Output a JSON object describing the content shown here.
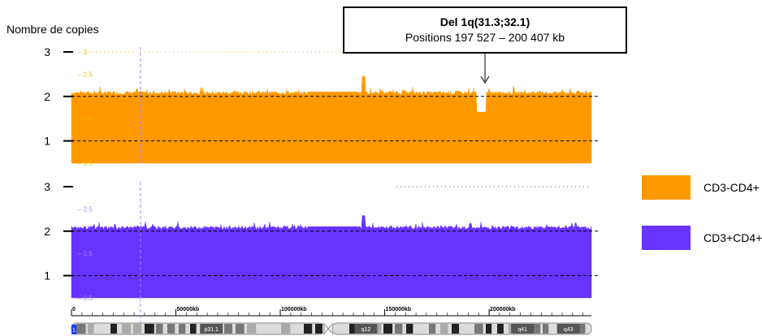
{
  "y_axis_label": "Nombre de copies",
  "annotation": {
    "title": "Del 1q(31.3;32.1)",
    "subtitle": "Positions 197 527 – 200 407 kb"
  },
  "colors": {
    "cd3_cd4plus_neg": "#FF9900",
    "cd3_cd4plus_pos": "#6633FF"
  },
  "chart_data": [
    {
      "type": "area",
      "series": [
        {
          "name": "CD3-CD4+",
          "color": "#FF9900",
          "baseline_copy_number": 2,
          "features": [
            {
              "x_range_kb": [
                113000,
                137000
              ],
              "copy_number": 2.1
            },
            {
              "x_kb": 140000,
              "copy_number": 2.45
            },
            {
              "x_range_kb": [
                194000,
                198500
              ],
              "copy_number": 1.65
            }
          ]
        }
      ],
      "yticks": [
        "1",
        "2",
        "3"
      ],
      "minor_yticks": [
        "0.5",
        "1.5",
        "2.5",
        "3"
      ],
      "ylim": [
        0.5,
        3
      ],
      "xlim": [
        0,
        249000
      ],
      "ref_line_x_kb": 33000
    },
    {
      "type": "area",
      "series": [
        {
          "name": "CD3+CD4+",
          "color": "#6633FF",
          "baseline_copy_number": 2,
          "features": [
            {
              "x_range_kb": [
                113000,
                137000
              ],
              "copy_number": 2.1
            },
            {
              "x_kb": 140000,
              "copy_number": 2.35
            }
          ]
        }
      ],
      "yticks": [
        "1",
        "2",
        "3"
      ],
      "minor_yticks": [
        "0.5",
        "1.5",
        "2.5"
      ],
      "ylim": [
        0.5,
        3
      ],
      "xlim": [
        0,
        249000
      ],
      "ref_line_x_kb": 33000
    }
  ],
  "x_axis": {
    "ticks": [
      {
        "value": 0,
        "label": "0"
      },
      {
        "value": 50000,
        "label": "50000kb"
      },
      {
        "value": 100000,
        "label": "100000kb"
      },
      {
        "value": 150000,
        "label": "150000kb"
      },
      {
        "value": 200000,
        "label": "200000kb"
      }
    ]
  },
  "ideogram": {
    "bands": [
      {
        "label": "p31.1",
        "x_kb": 67000
      },
      {
        "label": "q12",
        "x_kb": 141000
      },
      {
        "label": "q41",
        "x_kb": 216000
      },
      {
        "label": "q43",
        "x_kb": 238000
      }
    ],
    "centromere_kb": 123000,
    "selector_label": "1"
  },
  "legend": [
    {
      "label": "CD3-CD4+",
      "color": "#FF9900"
    },
    {
      "label": "CD3+CD4+",
      "color": "#6633FF"
    }
  ]
}
